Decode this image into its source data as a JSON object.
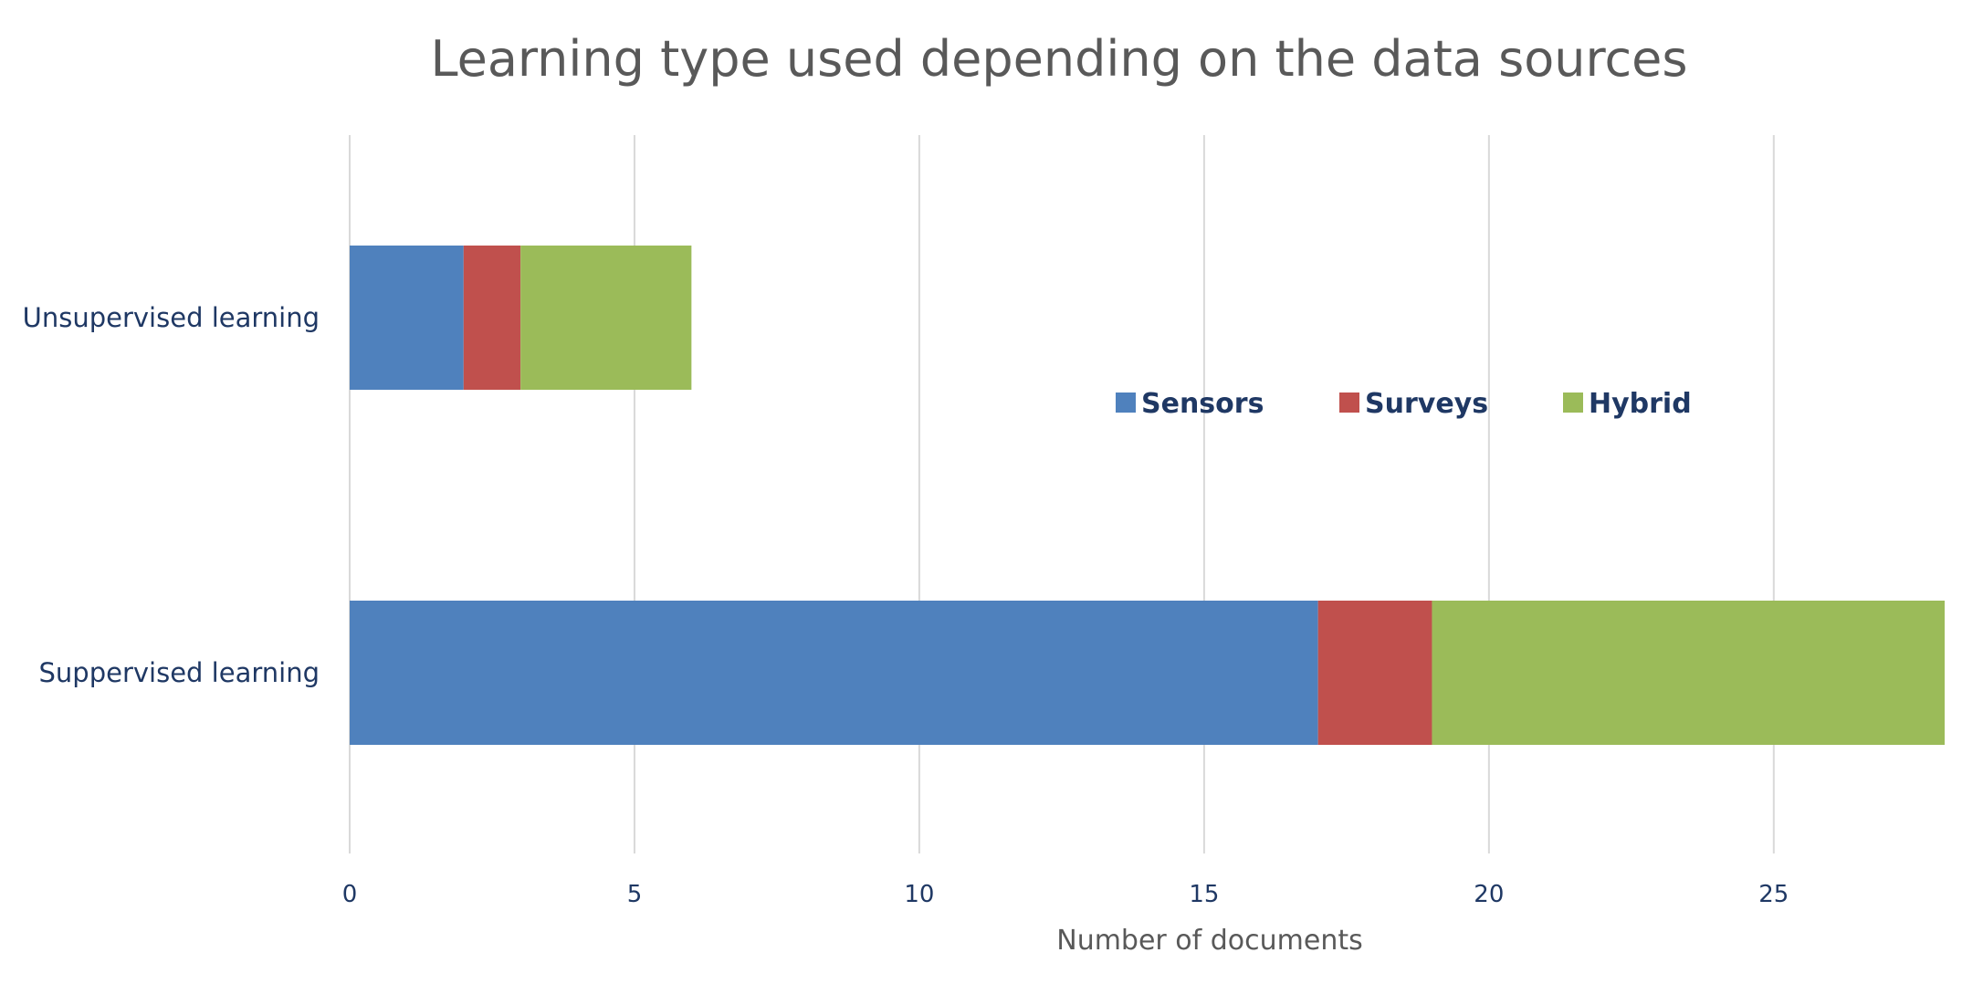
{
  "chart_data": {
    "type": "bar",
    "orientation": "horizontal",
    "stacked": true,
    "title": "Learning type used depending on the data sources",
    "xlabel": "Number of documents",
    "ylabel": "",
    "xlim": [
      0,
      28
    ],
    "x_ticks": [
      0,
      5,
      10,
      15,
      20,
      25
    ],
    "grid": true,
    "legend_position": "inside-center-right",
    "categories": [
      "Unsupervised learning",
      "Suppervised learning"
    ],
    "series": [
      {
        "name": "Sensors",
        "color": "#4f81bd",
        "values": [
          2,
          17
        ]
      },
      {
        "name": "Surveys",
        "color": "#c0504d",
        "values": [
          1,
          2
        ]
      },
      {
        "name": "Hybrid",
        "color": "#9bbb59",
        "values": [
          3,
          9
        ]
      }
    ]
  }
}
